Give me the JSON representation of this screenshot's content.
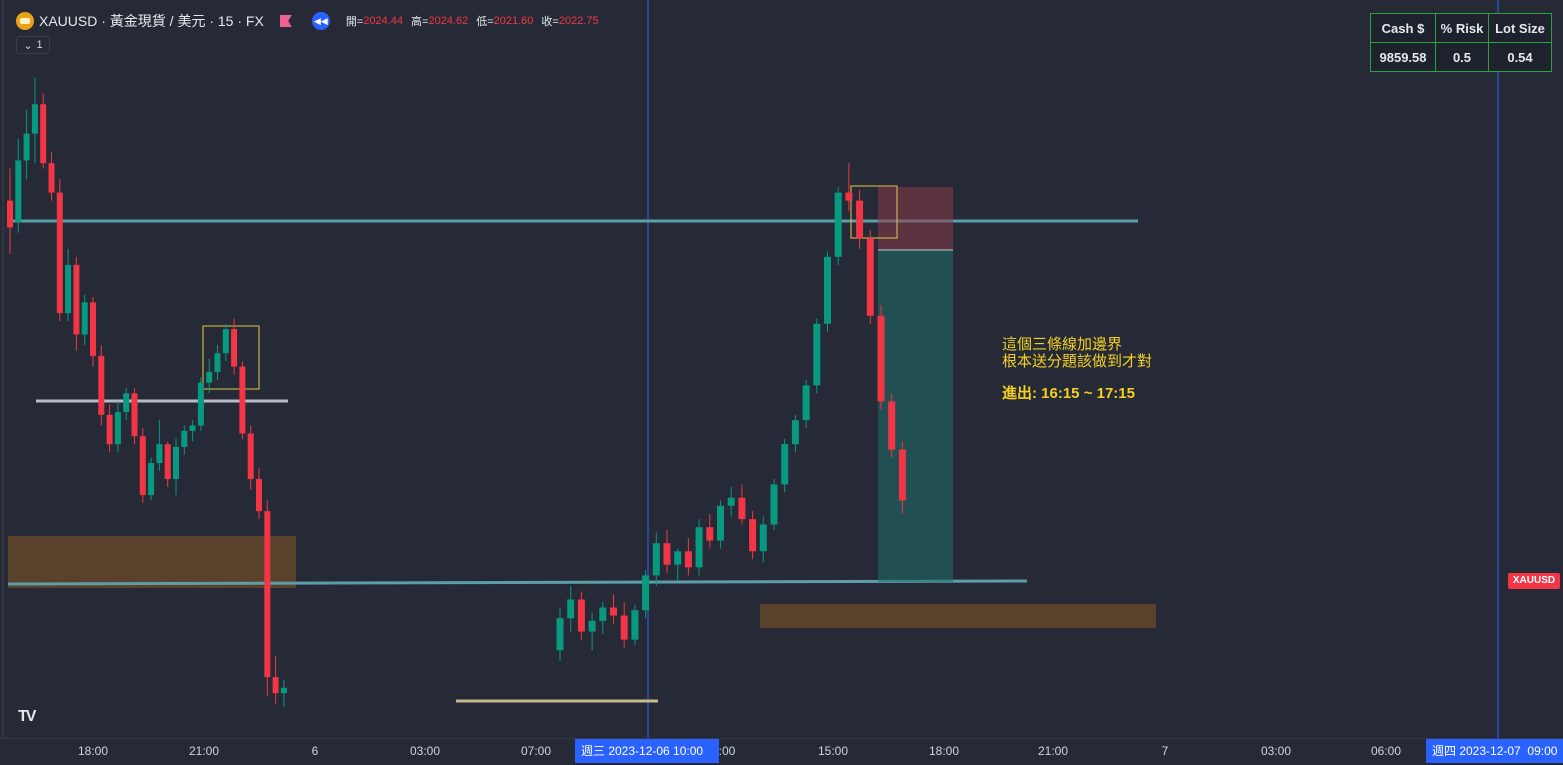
{
  "header": {
    "symbol_title": "XAUUSD · 黃金現貨 / 美元 · 15 · FX",
    "ohlc": [
      {
        "label": "開=",
        "value": "2024.44"
      },
      {
        "label": "高=",
        "value": "2024.62"
      },
      {
        "label": "低=",
        "value": "2021.60"
      },
      {
        "label": "收=",
        "value": "2022.75"
      }
    ],
    "collapse_count": "1"
  },
  "risk_table": {
    "headers": [
      "Cash $",
      "% Risk",
      "Lot Size"
    ],
    "values": [
      "9859.58",
      "0.5",
      "0.54"
    ]
  },
  "annotation": {
    "line1": "這個三條線加邊界",
    "line2": "根本送分題該做到才對",
    "line3": "進出: 16:15 ~ 17:15"
  },
  "price_badge": "XAUUSD",
  "time_axis": {
    "ticks": [
      "18:00",
      "21:00",
      "6",
      "03:00",
      "07:00",
      ":00",
      "15:00",
      "18:00",
      "21:00",
      "7",
      "03:00",
      "06:00",
      "09:00"
    ],
    "cursor_left": "週三 2023-12-06   10:00",
    "cursor_right": "週四 2023-12-07"
  },
  "colors": {
    "background": "#262a36",
    "candle_up": "#089981",
    "candle_down": "#f23645",
    "level_line": "#5b9ea8",
    "zone": "#6b4a2a",
    "accent": "#2962ff",
    "annotation": "#f5d020"
  },
  "chart_data": {
    "type": "candlestick",
    "symbol": "XAUUSD",
    "interval": "15",
    "candles": [
      {
        "o": 2034.0,
        "h": 2035.2,
        "l": 2032.0,
        "c": 2033.0
      },
      {
        "o": 2033.2,
        "h": 2036.3,
        "l": 2032.8,
        "c": 2035.5
      },
      {
        "o": 2035.5,
        "h": 2037.4,
        "l": 2034.8,
        "c": 2036.5
      },
      {
        "o": 2036.5,
        "h": 2038.6,
        "l": 2035.4,
        "c": 2037.6
      },
      {
        "o": 2037.6,
        "h": 2038.0,
        "l": 2035.2,
        "c": 2035.4
      },
      {
        "o": 2035.4,
        "h": 2035.8,
        "l": 2034.0,
        "c": 2034.3
      },
      {
        "o": 2034.3,
        "h": 2034.8,
        "l": 2029.5,
        "c": 2029.8
      },
      {
        "o": 2029.8,
        "h": 2032.2,
        "l": 2029.5,
        "c": 2031.6
      },
      {
        "o": 2031.6,
        "h": 2031.9,
        "l": 2028.4,
        "c": 2029.0
      },
      {
        "o": 2029.0,
        "h": 2030.5,
        "l": 2028.6,
        "c": 2030.2
      },
      {
        "o": 2030.2,
        "h": 2030.4,
        "l": 2027.8,
        "c": 2028.2
      },
      {
        "o": 2028.2,
        "h": 2028.6,
        "l": 2025.6,
        "c": 2026.0
      },
      {
        "o": 2026.0,
        "h": 2026.4,
        "l": 2024.6,
        "c": 2024.9
      },
      {
        "o": 2024.9,
        "h": 2026.5,
        "l": 2024.6,
        "c": 2026.1
      },
      {
        "o": 2026.1,
        "h": 2027.0,
        "l": 2025.8,
        "c": 2026.8
      },
      {
        "o": 2026.8,
        "h": 2027.0,
        "l": 2024.9,
        "c": 2025.2
      },
      {
        "o": 2025.2,
        "h": 2025.5,
        "l": 2022.7,
        "c": 2023.0
      },
      {
        "o": 2023.0,
        "h": 2024.4,
        "l": 2022.8,
        "c": 2024.2
      },
      {
        "o": 2024.2,
        "h": 2025.8,
        "l": 2023.9,
        "c": 2024.9
      },
      {
        "o": 2024.9,
        "h": 2025.0,
        "l": 2023.3,
        "c": 2023.6
      },
      {
        "o": 2023.6,
        "h": 2025.1,
        "l": 2023.0,
        "c": 2024.8
      },
      {
        "o": 2024.8,
        "h": 2025.6,
        "l": 2024.5,
        "c": 2025.4
      },
      {
        "o": 2025.4,
        "h": 2025.8,
        "l": 2025.0,
        "c": 2025.6
      },
      {
        "o": 2025.6,
        "h": 2027.4,
        "l": 2025.4,
        "c": 2027.2
      },
      {
        "o": 2027.2,
        "h": 2028.1,
        "l": 2026.8,
        "c": 2027.6
      },
      {
        "o": 2027.6,
        "h": 2028.6,
        "l": 2027.3,
        "c": 2028.3
      },
      {
        "o": 2028.3,
        "h": 2029.4,
        "l": 2028.0,
        "c": 2029.2
      },
      {
        "o": 2029.2,
        "h": 2029.6,
        "l": 2027.5,
        "c": 2027.8
      },
      {
        "o": 2027.8,
        "h": 2028.0,
        "l": 2025.1,
        "c": 2025.3
      },
      {
        "o": 2025.3,
        "h": 2025.6,
        "l": 2023.2,
        "c": 2023.6
      },
      {
        "o": 2023.6,
        "h": 2024.0,
        "l": 2022.1,
        "c": 2022.4
      },
      {
        "o": 2022.4,
        "h": 2022.8,
        "l": 2015.5,
        "c": 2016.2
      },
      {
        "o": 2016.2,
        "h": 2017.0,
        "l": 2015.2,
        "c": 2015.6
      },
      {
        "o": 2015.6,
        "h": 2016.1,
        "l": 2015.1,
        "c": 2015.8
      }
    ],
    "levels": [
      2035.5,
      2029.2,
      2022.9
    ],
    "zones": [
      {
        "from": 2022.8,
        "to": 2023.9
      }
    ],
    "x_ticks": [
      "18:00",
      "21:00",
      "6",
      "03:00",
      "07:00",
      ":00",
      "15:00",
      "18:00",
      "21:00",
      "7",
      "03:00",
      "06:00",
      "09:00"
    ]
  }
}
